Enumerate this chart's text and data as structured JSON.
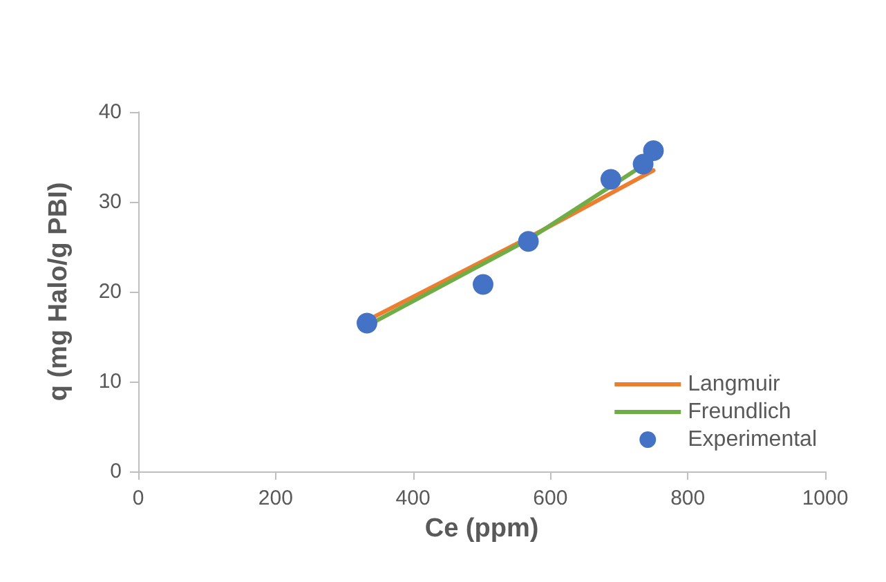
{
  "chart_data": {
    "type": "scatter",
    "xlabel": "Ce (ppm)",
    "ylabel": "q (mg Halo/g PBI)",
    "xlim": [
      0,
      1000
    ],
    "xticks": [
      0,
      200,
      400,
      600,
      800,
      1000
    ],
    "ylim": [
      0,
      40
    ],
    "yticks": [
      0,
      10,
      20,
      30,
      40
    ],
    "grid": false,
    "legend": "bottom right",
    "marker": "circle",
    "series": [
      {
        "name": "Langmuir",
        "type": "line",
        "color": "#ed7d31",
        "marker": "none",
        "x": [
          333,
          568,
          750
        ],
        "values": [
          16.8,
          26.0,
          33.5
        ]
      },
      {
        "name": "Freundlich",
        "type": "line",
        "color": "#70ad47",
        "marker": "none",
        "x": [
          333,
          568,
          750
        ],
        "values": [
          16.2,
          25.8,
          34.8
        ]
      },
      {
        "name": "Experimental",
        "color": "#4472c4",
        "x": [
          333,
          502,
          568,
          688,
          735,
          750
        ],
        "values": [
          16.5,
          20.8,
          25.6,
          32.5,
          34.2,
          35.7
        ]
      }
    ]
  }
}
